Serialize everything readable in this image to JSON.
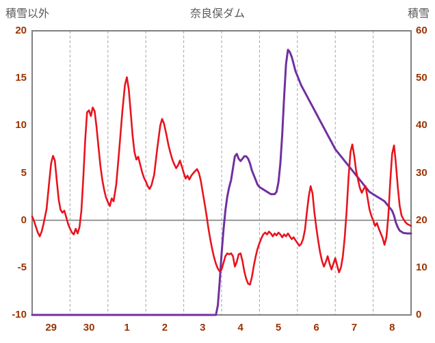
{
  "header": {
    "left_axis_title": "積雪以外",
    "chart_title": "奈良俣ダム",
    "right_axis_title": "積雪"
  },
  "chart_data": {
    "type": "line",
    "title": "奈良俣ダム",
    "left_axis": {
      "label": "積雪以外",
      "min": -10,
      "max": 20,
      "ticks": [
        20,
        15,
        10,
        5,
        0,
        -5,
        -10
      ]
    },
    "right_axis": {
      "label": "積雪",
      "min": 0,
      "max": 60,
      "ticks": [
        60,
        50,
        40,
        30,
        20,
        10,
        0
      ]
    },
    "x_axis": {
      "categories": [
        "29",
        "30",
        "1",
        "2",
        "3",
        "4",
        "5",
        "6",
        "7",
        "8"
      ],
      "range": [
        0,
        10
      ]
    },
    "grid": {
      "vertical_dashed": true,
      "horizontal": false,
      "zero_line": true
    },
    "legend": "none",
    "colors": {
      "header_text": "#595959",
      "tick_text": "#993300",
      "grid": "#a6a6a6",
      "border": "#808080",
      "zero_line": "#808080",
      "background": "#ffffff"
    },
    "series": [
      {
        "id": "snow-depth-line",
        "name": "積雪",
        "axis": "right",
        "color": "#7030a0",
        "width": 3,
        "points": [
          [
            0,
            0
          ],
          [
            4.85,
            0
          ],
          [
            4.9,
            2
          ],
          [
            4.95,
            7
          ],
          [
            5,
            13
          ],
          [
            5.05,
            18
          ],
          [
            5.1,
            22
          ],
          [
            5.15,
            25
          ],
          [
            5.2,
            27
          ],
          [
            5.25,
            28.5
          ],
          [
            5.3,
            31
          ],
          [
            5.35,
            33.5
          ],
          [
            5.4,
            34
          ],
          [
            5.45,
            33
          ],
          [
            5.5,
            32.5
          ],
          [
            5.55,
            33
          ],
          [
            5.6,
            33.5
          ],
          [
            5.65,
            33.5
          ],
          [
            5.7,
            33
          ],
          [
            5.75,
            32
          ],
          [
            5.8,
            30.5
          ],
          [
            5.85,
            29.5
          ],
          [
            5.9,
            28.5
          ],
          [
            5.95,
            27.5
          ],
          [
            6,
            27
          ],
          [
            6.1,
            26.5
          ],
          [
            6.2,
            26
          ],
          [
            6.3,
            25.5
          ],
          [
            6.4,
            25.5
          ],
          [
            6.45,
            26
          ],
          [
            6.5,
            28
          ],
          [
            6.55,
            32
          ],
          [
            6.6,
            38
          ],
          [
            6.65,
            46
          ],
          [
            6.7,
            53
          ],
          [
            6.75,
            56
          ],
          [
            6.8,
            55.5
          ],
          [
            6.85,
            54.5
          ],
          [
            6.9,
            53
          ],
          [
            6.95,
            51.5
          ],
          [
            7,
            50.5
          ],
          [
            7.1,
            48.5
          ],
          [
            7.2,
            47
          ],
          [
            7.3,
            45.5
          ],
          [
            7.4,
            44
          ],
          [
            7.5,
            42.5
          ],
          [
            7.6,
            41
          ],
          [
            7.7,
            39.5
          ],
          [
            7.8,
            38
          ],
          [
            7.9,
            36.5
          ],
          [
            8,
            35
          ],
          [
            8.1,
            34
          ],
          [
            8.2,
            33
          ],
          [
            8.3,
            32
          ],
          [
            8.4,
            31
          ],
          [
            8.5,
            30
          ],
          [
            8.6,
            29
          ],
          [
            8.7,
            28
          ],
          [
            8.8,
            27
          ],
          [
            8.9,
            26
          ],
          [
            9,
            25.5
          ],
          [
            9.1,
            25
          ],
          [
            9.2,
            24.5
          ],
          [
            9.3,
            24
          ],
          [
            9.4,
            23
          ],
          [
            9.5,
            22
          ],
          [
            9.55,
            21
          ],
          [
            9.6,
            19.5
          ],
          [
            9.65,
            18.5
          ],
          [
            9.7,
            17.8
          ],
          [
            9.8,
            17.3
          ],
          [
            9.9,
            17.2
          ],
          [
            10,
            17.2
          ]
        ]
      },
      {
        "id": "other-than-snow-line",
        "name": "積雪以外",
        "axis": "left",
        "color": "#e8131d",
        "width": 2.6,
        "points": [
          [
            0,
            0.4
          ],
          [
            0.05,
            -0.1
          ],
          [
            0.1,
            -0.7
          ],
          [
            0.15,
            -1.3
          ],
          [
            0.2,
            -1.7
          ],
          [
            0.25,
            -1.2
          ],
          [
            0.3,
            -0.4
          ],
          [
            0.38,
            1.2
          ],
          [
            0.45,
            4
          ],
          [
            0.5,
            6
          ],
          [
            0.55,
            6.8
          ],
          [
            0.6,
            6.3
          ],
          [
            0.65,
            4.2
          ],
          [
            0.7,
            2.2
          ],
          [
            0.75,
            1.1
          ],
          [
            0.8,
            0.8
          ],
          [
            0.85,
            1
          ],
          [
            0.9,
            0.3
          ],
          [
            0.95,
            -0.4
          ],
          [
            1,
            -0.9
          ],
          [
            1.05,
            -1.3
          ],
          [
            1.1,
            -1.5
          ],
          [
            1.15,
            -0.9
          ],
          [
            1.2,
            -1.4
          ],
          [
            1.25,
            -0.7
          ],
          [
            1.3,
            1
          ],
          [
            1.35,
            4.5
          ],
          [
            1.4,
            8.5
          ],
          [
            1.45,
            11.4
          ],
          [
            1.5,
            11.6
          ],
          [
            1.55,
            11
          ],
          [
            1.6,
            11.9
          ],
          [
            1.65,
            11.5
          ],
          [
            1.7,
            9.8
          ],
          [
            1.75,
            7.8
          ],
          [
            1.8,
            5.8
          ],
          [
            1.85,
            4.3
          ],
          [
            1.9,
            3.2
          ],
          [
            1.95,
            2.4
          ],
          [
            2,
            1.9
          ],
          [
            2.05,
            1.5
          ],
          [
            2.1,
            2.3
          ],
          [
            2.15,
            2
          ],
          [
            2.22,
            3.8
          ],
          [
            2.3,
            7.5
          ],
          [
            2.38,
            11.5
          ],
          [
            2.45,
            14.3
          ],
          [
            2.5,
            15.1
          ],
          [
            2.55,
            13.8
          ],
          [
            2.6,
            11.5
          ],
          [
            2.65,
            9
          ],
          [
            2.7,
            7.2
          ],
          [
            2.75,
            6.4
          ],
          [
            2.8,
            6.7
          ],
          [
            2.85,
            5.9
          ],
          [
            2.9,
            5.1
          ],
          [
            2.95,
            4.5
          ],
          [
            3,
            4.1
          ],
          [
            3.05,
            3.6
          ],
          [
            3.1,
            3.3
          ],
          [
            3.15,
            3.7
          ],
          [
            3.22,
            4.8
          ],
          [
            3.3,
            7.5
          ],
          [
            3.38,
            10
          ],
          [
            3.43,
            10.7
          ],
          [
            3.48,
            10.2
          ],
          [
            3.55,
            8.9
          ],
          [
            3.6,
            7.9
          ],
          [
            3.65,
            7.1
          ],
          [
            3.7,
            6.4
          ],
          [
            3.75,
            5.9
          ],
          [
            3.8,
            5.5
          ],
          [
            3.85,
            5.8
          ],
          [
            3.9,
            6.3
          ],
          [
            3.95,
            5.7
          ],
          [
            4,
            5
          ],
          [
            4.05,
            4.4
          ],
          [
            4.1,
            4.7
          ],
          [
            4.15,
            4.3
          ],
          [
            4.2,
            4.7
          ],
          [
            4.28,
            5.1
          ],
          [
            4.35,
            5.4
          ],
          [
            4.4,
            5
          ],
          [
            4.45,
            4.2
          ],
          [
            4.5,
            3
          ],
          [
            4.55,
            1.8
          ],
          [
            4.6,
            0.6
          ],
          [
            4.65,
            -0.8
          ],
          [
            4.7,
            -2
          ],
          [
            4.75,
            -3
          ],
          [
            4.8,
            -3.9
          ],
          [
            4.85,
            -4.6
          ],
          [
            4.9,
            -5.1
          ],
          [
            4.95,
            -5.4
          ],
          [
            5,
            -5.2
          ],
          [
            5.05,
            -4.5
          ],
          [
            5.1,
            -3.8
          ],
          [
            5.15,
            -3.5
          ],
          [
            5.2,
            -3.6
          ],
          [
            5.25,
            -3.5
          ],
          [
            5.3,
            -3.8
          ],
          [
            5.35,
            -4.9
          ],
          [
            5.4,
            -4.4
          ],
          [
            5.45,
            -3.6
          ],
          [
            5.5,
            -3.5
          ],
          [
            5.55,
            -4.3
          ],
          [
            5.6,
            -5.4
          ],
          [
            5.65,
            -6.2
          ],
          [
            5.7,
            -6.7
          ],
          [
            5.75,
            -6.8
          ],
          [
            5.8,
            -6
          ],
          [
            5.85,
            -4.8
          ],
          [
            5.9,
            -3.8
          ],
          [
            5.95,
            -3
          ],
          [
            6,
            -2.4
          ],
          [
            6.05,
            -1.9
          ],
          [
            6.1,
            -1.5
          ],
          [
            6.15,
            -1.3
          ],
          [
            6.2,
            -1.5
          ],
          [
            6.25,
            -1.2
          ],
          [
            6.3,
            -1.4
          ],
          [
            6.35,
            -1.7
          ],
          [
            6.4,
            -1.4
          ],
          [
            6.45,
            -1.6
          ],
          [
            6.5,
            -1.3
          ],
          [
            6.55,
            -1.5
          ],
          [
            6.6,
            -1.8
          ],
          [
            6.65,
            -1.5
          ],
          [
            6.7,
            -1.7
          ],
          [
            6.75,
            -1.4
          ],
          [
            6.8,
            -1.7
          ],
          [
            6.85,
            -2
          ],
          [
            6.9,
            -1.8
          ],
          [
            6.95,
            -2.1
          ],
          [
            7,
            -2.4
          ],
          [
            7.05,
            -2.7
          ],
          [
            7.1,
            -2.5
          ],
          [
            7.15,
            -2
          ],
          [
            7.2,
            -1
          ],
          [
            7.25,
            0.8
          ],
          [
            7.3,
            2.5
          ],
          [
            7.35,
            3.6
          ],
          [
            7.4,
            2.8
          ],
          [
            7.45,
            0.8
          ],
          [
            7.5,
            -0.8
          ],
          [
            7.55,
            -2.2
          ],
          [
            7.6,
            -3.4
          ],
          [
            7.65,
            -4.3
          ],
          [
            7.7,
            -4.9
          ],
          [
            7.75,
            -4.4
          ],
          [
            7.8,
            -3.8
          ],
          [
            7.85,
            -4.6
          ],
          [
            7.9,
            -5.2
          ],
          [
            7.95,
            -4.6
          ],
          [
            8,
            -4
          ],
          [
            8.05,
            -4.8
          ],
          [
            8.1,
            -5.5
          ],
          [
            8.15,
            -5
          ],
          [
            8.2,
            -3.8
          ],
          [
            8.25,
            -1.8
          ],
          [
            8.3,
            1
          ],
          [
            8.35,
            4.5
          ],
          [
            8.4,
            7.2
          ],
          [
            8.45,
            8
          ],
          [
            8.5,
            6.8
          ],
          [
            8.55,
            5.2
          ],
          [
            8.6,
            4.3
          ],
          [
            8.65,
            3.4
          ],
          [
            8.7,
            2.9
          ],
          [
            8.75,
            3.3
          ],
          [
            8.8,
            3.6
          ],
          [
            8.85,
            2.4
          ],
          [
            8.9,
            1.2
          ],
          [
            8.95,
            0.5
          ],
          [
            9,
            0
          ],
          [
            9.05,
            -0.6
          ],
          [
            9.1,
            -0.3
          ],
          [
            9.15,
            -0.9
          ],
          [
            9.2,
            -1.4
          ],
          [
            9.25,
            -1.9
          ],
          [
            9.3,
            -2.6
          ],
          [
            9.35,
            -1.8
          ],
          [
            9.4,
            0.5
          ],
          [
            9.45,
            4
          ],
          [
            9.5,
            7
          ],
          [
            9.55,
            7.9
          ],
          [
            9.6,
            6
          ],
          [
            9.65,
            3.5
          ],
          [
            9.7,
            1.5
          ],
          [
            9.75,
            0.5
          ],
          [
            9.8,
            0.1
          ],
          [
            9.85,
            -0.2
          ],
          [
            9.9,
            -0.4
          ],
          [
            9.95,
            -0.5
          ],
          [
            10,
            -0.6
          ]
        ]
      }
    ]
  }
}
